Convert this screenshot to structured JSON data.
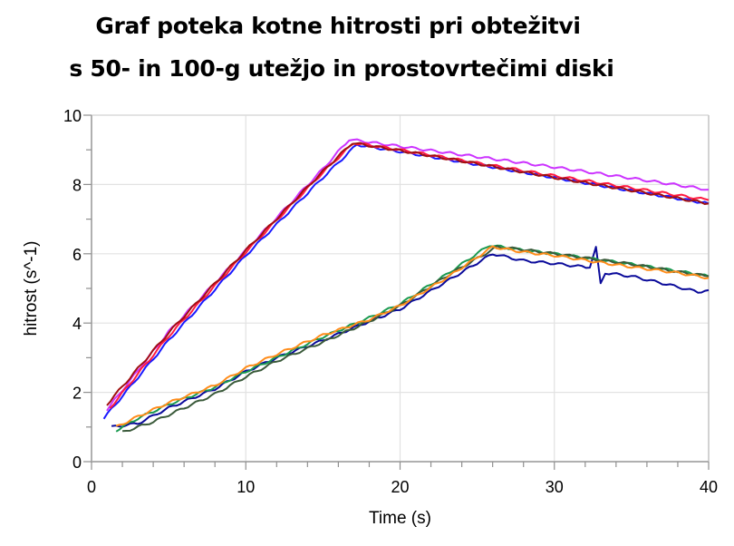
{
  "title_lines": [
    "Graf poteka kotne hitrosti pri obtežitvi",
    "s 50- in 100-g utežjo in prostovrtečimi diski"
  ],
  "chart_data": {
    "type": "line",
    "title": "Graf poteka kotne hitrosti pri obtežitvi s 50- in 100-g utežjo in prostovrtečimi diski",
    "xlabel": "Time (s)",
    "ylabel": "hitrost (s^-1)",
    "xlim": [
      0,
      40
    ],
    "ylim": [
      0,
      10
    ],
    "xticks": [
      0,
      10,
      20,
      30,
      40
    ],
    "xminor_step": 2,
    "yticks": [
      0,
      2,
      4,
      6,
      8,
      10
    ],
    "yminor_step": 1,
    "grid": true,
    "legend": "none",
    "series": [
      {
        "name": "run-magenta",
        "color": "#cc33ff",
        "points": [
          [
            1.0,
            1.5
          ],
          [
            5,
            3.75
          ],
          [
            10,
            6.1
          ],
          [
            15,
            8.45
          ],
          [
            16.7,
            9.3
          ],
          [
            20,
            9.1
          ],
          [
            25,
            8.8
          ],
          [
            30,
            8.5
          ],
          [
            35,
            8.18
          ],
          [
            40,
            7.85
          ]
        ]
      },
      {
        "name": "run-blue",
        "color": "#1a1aff",
        "points": [
          [
            0.8,
            1.25
          ],
          [
            5,
            3.5
          ],
          [
            10,
            5.95
          ],
          [
            15,
            8.2
          ],
          [
            17.2,
            9.15
          ],
          [
            20,
            8.95
          ],
          [
            25,
            8.58
          ],
          [
            30,
            8.2
          ],
          [
            35,
            7.82
          ],
          [
            40,
            7.45
          ]
        ]
      },
      {
        "name": "run-red",
        "color": "#ff1a40",
        "points": [
          [
            1.2,
            1.55
          ],
          [
            5,
            3.62
          ],
          [
            10,
            6.05
          ],
          [
            15,
            8.35
          ],
          [
            17.0,
            9.2
          ],
          [
            20,
            9.0
          ],
          [
            25,
            8.62
          ],
          [
            30,
            8.25
          ],
          [
            35,
            7.9
          ],
          [
            40,
            7.55
          ]
        ]
      },
      {
        "name": "run-darkred",
        "color": "#a01010",
        "points": [
          [
            1.0,
            1.65
          ],
          [
            5,
            3.72
          ],
          [
            10,
            6.1
          ],
          [
            15,
            8.38
          ],
          [
            16.9,
            9.2
          ],
          [
            20,
            8.98
          ],
          [
            25,
            8.6
          ],
          [
            30,
            8.2
          ],
          [
            35,
            7.83
          ],
          [
            40,
            7.45
          ]
        ]
      },
      {
        "name": "run-navy",
        "color": "#0a0a9a",
        "points": [
          [
            1.3,
            1.0
          ],
          [
            3,
            1.1
          ],
          [
            5,
            1.55
          ],
          [
            8,
            2.1
          ],
          [
            10,
            2.6
          ],
          [
            12,
            3.0
          ],
          [
            15,
            3.5
          ],
          [
            18,
            4.05
          ],
          [
            20,
            4.4
          ],
          [
            23,
            5.2
          ],
          [
            26,
            6.0
          ],
          [
            28,
            5.8
          ],
          [
            30,
            5.72
          ],
          [
            32.3,
            5.6
          ],
          [
            32.7,
            6.2
          ],
          [
            33,
            5.15
          ],
          [
            33.3,
            5.45
          ],
          [
            35,
            5.35
          ],
          [
            37,
            5.15
          ],
          [
            39.3,
            4.9
          ],
          [
            40,
            4.95
          ]
        ]
      },
      {
        "name": "run-green",
        "color": "#1a9a50",
        "points": [
          [
            1.6,
            0.9
          ],
          [
            3,
            1.25
          ],
          [
            5,
            1.65
          ],
          [
            8,
            2.15
          ],
          [
            10,
            2.6
          ],
          [
            12,
            3.0
          ],
          [
            15,
            3.6
          ],
          [
            18,
            4.15
          ],
          [
            20,
            4.55
          ],
          [
            23,
            5.4
          ],
          [
            25.8,
            6.25
          ],
          [
            28,
            6.1
          ],
          [
            30,
            6.0
          ],
          [
            32.5,
            5.85
          ],
          [
            35,
            5.7
          ],
          [
            38,
            5.5
          ],
          [
            40,
            5.35
          ]
        ]
      },
      {
        "name": "run-darkgreen",
        "color": "#3a5a3a",
        "points": [
          [
            2.0,
            0.85
          ],
          [
            4,
            1.15
          ],
          [
            6,
            1.55
          ],
          [
            8,
            1.95
          ],
          [
            10,
            2.45
          ],
          [
            12,
            2.9
          ],
          [
            15,
            3.45
          ],
          [
            18,
            4.05
          ],
          [
            20,
            4.5
          ],
          [
            23,
            5.35
          ],
          [
            26.3,
            6.2
          ],
          [
            28,
            6.12
          ],
          [
            30,
            6.0
          ],
          [
            32.5,
            5.85
          ],
          [
            35,
            5.7
          ],
          [
            38,
            5.48
          ],
          [
            40,
            5.35
          ]
        ]
      },
      {
        "name": "run-orange",
        "color": "#ff8c1a",
        "points": [
          [
            1.6,
            1.0
          ],
          [
            3,
            1.3
          ],
          [
            5,
            1.7
          ],
          [
            8,
            2.2
          ],
          [
            10,
            2.7
          ],
          [
            12,
            3.1
          ],
          [
            15,
            3.65
          ],
          [
            18,
            4.1
          ],
          [
            20,
            4.5
          ],
          [
            23,
            5.3
          ],
          [
            26.0,
            6.2
          ],
          [
            28,
            6.05
          ],
          [
            30,
            5.95
          ],
          [
            32.5,
            5.78
          ],
          [
            35,
            5.62
          ],
          [
            38,
            5.45
          ],
          [
            40,
            5.3
          ]
        ]
      }
    ]
  }
}
